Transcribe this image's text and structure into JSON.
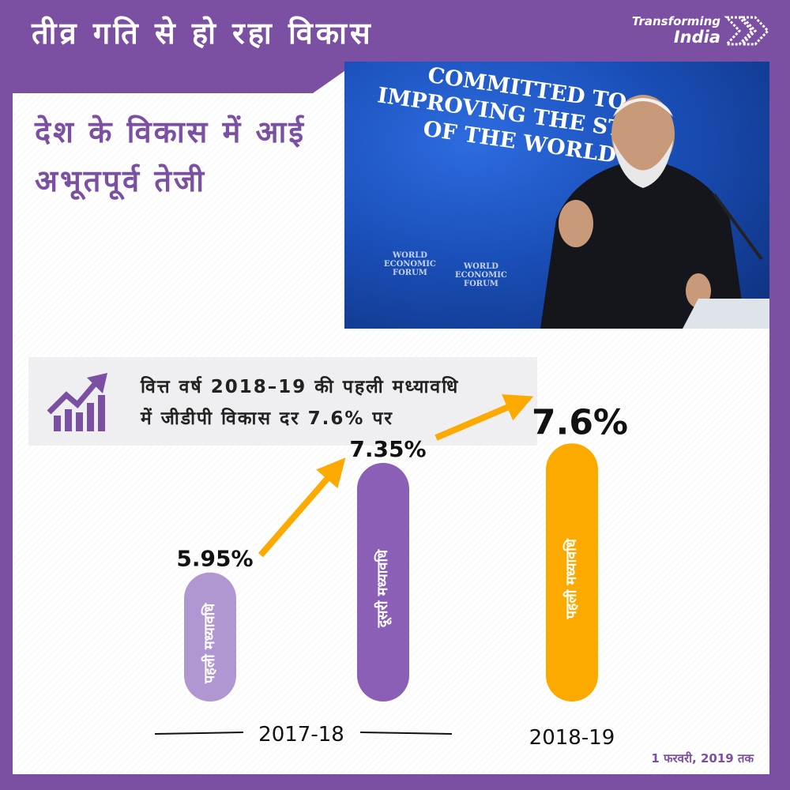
{
  "header": {
    "title": "तीव्र गति से हो रहा विकास"
  },
  "brand": {
    "line1": "Transforming",
    "line2": "India",
    "icon": "double-chevron-right-icon",
    "colors": {
      "text": "#ffffff"
    }
  },
  "subtitle": {
    "line1": "देश के विकास में आई",
    "line2": "अभूतपूर्व तेजी"
  },
  "photo": {
    "banner_lines": [
      "COMMITTED TO",
      "IMPROVING THE STATE",
      "OF THE WORLD"
    ],
    "logo_lines": [
      "WORLD",
      "ECONOMIC",
      "FORUM"
    ]
  },
  "info": {
    "icon": "growth-chart-arrow-icon",
    "line1": "वित्त वर्ष 2018–19 की पहली मध्यावधि",
    "line2": "में जीडीपी विकास दर 7.6% पर"
  },
  "chart_data": {
    "type": "bar",
    "categories": [
      "पहली मध्यावधि",
      "दूसरी मध्यावधि",
      "पहली मध्यावधि"
    ],
    "values": [
      5.95,
      7.35,
      7.6
    ],
    "value_labels": [
      "5.95%",
      "7.35%",
      "7.6%"
    ],
    "groups": [
      {
        "label": "2017-18",
        "bar_indices": [
          0,
          1
        ]
      },
      {
        "label": "2018-19",
        "bar_indices": [
          2
        ]
      }
    ],
    "bar_colors": [
      "#b197d2",
      "#8a5fb5",
      "#fdaa00"
    ],
    "arrow_color": "#fdaa00"
  },
  "footnote": "1 फरवरी, 2019 तक",
  "colors": {
    "frame": "#7b50a3",
    "accent": "#fdaa00",
    "panel": "#ffffff",
    "info_box": "#efeef0"
  }
}
